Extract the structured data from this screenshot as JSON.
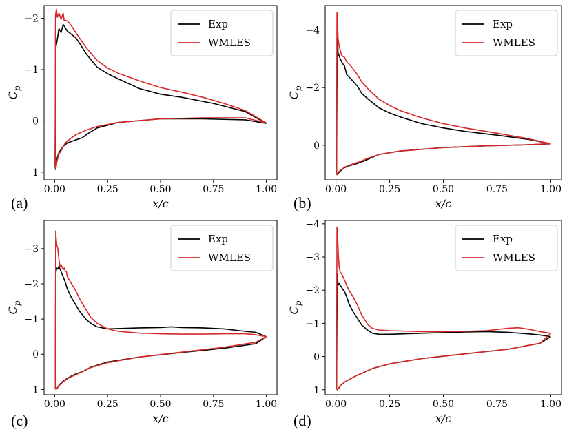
{
  "figure": {
    "background": "#ffffff"
  },
  "legend": {
    "entries": [
      {
        "label": "Exp",
        "color": "#000000"
      },
      {
        "label": "WMLES",
        "color": "#d62728"
      }
    ]
  },
  "chart_data": [
    {
      "type": "line",
      "panel_label": "(a)",
      "xlabel": "x/c",
      "ylabel": "C_p",
      "xlim": [
        -0.05,
        1.05
      ],
      "ylim": [
        1.15,
        -2.25
      ],
      "xticks": [
        "0.00",
        "0.25",
        "0.50",
        "0.75",
        "1.00"
      ],
      "yticks": [
        {
          "v": -2,
          "label": "−2"
        },
        {
          "v": -1,
          "label": "−1"
        },
        {
          "v": 0,
          "label": "0"
        },
        {
          "v": 1,
          "label": "1"
        }
      ],
      "legend_position": "top-right",
      "series": [
        {
          "name": "Exp",
          "color": "#000000",
          "x": [
            1.0,
            0.9,
            0.75,
            0.6,
            0.5,
            0.4,
            0.3,
            0.25,
            0.2,
            0.15,
            0.12,
            0.1,
            0.06,
            0.04,
            0.03,
            0.02,
            0.012,
            0.005,
            0.002,
            0.005,
            0.012,
            0.02,
            0.04,
            0.06,
            0.08,
            0.1,
            0.13,
            0.16,
            0.2,
            0.3,
            0.5,
            0.7,
            0.9,
            1.0
          ],
          "y": [
            0.05,
            -0.18,
            -0.34,
            -0.46,
            -0.52,
            -0.63,
            -0.82,
            -0.92,
            -1.05,
            -1.3,
            -1.5,
            -1.62,
            -1.75,
            -1.88,
            -1.72,
            -1.8,
            -1.58,
            -1.42,
            0.9,
            0.95,
            0.72,
            0.62,
            0.5,
            0.43,
            0.4,
            0.37,
            0.33,
            0.24,
            0.14,
            0.03,
            -0.04,
            -0.04,
            -0.02,
            0.05
          ]
        },
        {
          "name": "WMLES",
          "color": "#d62728",
          "x": [
            1.0,
            0.9,
            0.8,
            0.7,
            0.6,
            0.5,
            0.4,
            0.3,
            0.25,
            0.2,
            0.15,
            0.12,
            0.1,
            0.08,
            0.06,
            0.045,
            0.04,
            0.03,
            0.025,
            0.02,
            0.012,
            0.008,
            0.004,
            0.002,
            0.005,
            0.01,
            0.02,
            0.035,
            0.05,
            0.07,
            0.1,
            0.15,
            0.2,
            0.3,
            0.5,
            0.7,
            0.9,
            1.0
          ],
          "y": [
            0.04,
            -0.2,
            -0.34,
            -0.46,
            -0.56,
            -0.65,
            -0.78,
            -0.93,
            -1.03,
            -1.18,
            -1.42,
            -1.6,
            -1.72,
            -1.85,
            -1.95,
            -1.96,
            -2.1,
            -1.98,
            -2.05,
            -2.1,
            -2.02,
            -2.18,
            -2.05,
            0.9,
            0.93,
            0.8,
            0.65,
            0.55,
            0.43,
            0.36,
            0.27,
            0.18,
            0.11,
            0.03,
            -0.04,
            -0.06,
            -0.06,
            0.04
          ]
        }
      ]
    },
    {
      "type": "line",
      "panel_label": "(b)",
      "xlabel": "x/c",
      "ylabel": "C_p",
      "xlim": [
        -0.05,
        1.05
      ],
      "ylim": [
        1.2,
        -4.85
      ],
      "xticks": [
        "0.00",
        "0.25",
        "0.50",
        "0.75",
        "1.00"
      ],
      "yticks": [
        {
          "v": -4,
          "label": "−4"
        },
        {
          "v": -2,
          "label": "−2"
        },
        {
          "v": 0,
          "label": "0"
        }
      ],
      "legend_position": "top-right",
      "series": [
        {
          "name": "Exp",
          "color": "#000000",
          "x": [
            1.0,
            0.9,
            0.75,
            0.6,
            0.5,
            0.4,
            0.3,
            0.25,
            0.2,
            0.15,
            0.12,
            0.1,
            0.07,
            0.05,
            0.04,
            0.03,
            0.02,
            0.015,
            0.01,
            0.006,
            0.003,
            0.006,
            0.01,
            0.02,
            0.04,
            0.06,
            0.1,
            0.13,
            0.16,
            0.2,
            0.3,
            0.5,
            0.7,
            0.9,
            1.0
          ],
          "y": [
            -0.05,
            -0.2,
            -0.35,
            -0.48,
            -0.6,
            -0.75,
            -0.98,
            -1.12,
            -1.3,
            -1.6,
            -1.8,
            -2.05,
            -2.3,
            -2.45,
            -2.75,
            -2.85,
            -3.0,
            -3.1,
            -3.2,
            -4.0,
            1.0,
            1.02,
            0.98,
            0.9,
            0.78,
            0.72,
            0.63,
            0.55,
            0.45,
            0.32,
            0.2,
            0.08,
            0.02,
            -0.02,
            -0.05
          ]
        },
        {
          "name": "WMLES",
          "color": "#d62728",
          "x": [
            1.0,
            0.9,
            0.75,
            0.6,
            0.5,
            0.4,
            0.3,
            0.25,
            0.2,
            0.15,
            0.12,
            0.1,
            0.07,
            0.05,
            0.04,
            0.03,
            0.025,
            0.02,
            0.015,
            0.01,
            0.008,
            0.005,
            0.003,
            0.005,
            0.01,
            0.02,
            0.04,
            0.06,
            0.1,
            0.15,
            0.2,
            0.3,
            0.5,
            0.7,
            0.9,
            1.0
          ],
          "y": [
            -0.05,
            -0.22,
            -0.42,
            -0.6,
            -0.75,
            -0.95,
            -1.2,
            -1.38,
            -1.6,
            -1.95,
            -2.2,
            -2.45,
            -2.75,
            -2.9,
            -3.05,
            -3.1,
            -3.15,
            -3.3,
            -3.45,
            -3.7,
            -4.1,
            -4.6,
            1.0,
            1.02,
            0.95,
            0.88,
            0.76,
            0.7,
            0.6,
            0.45,
            0.32,
            0.2,
            0.08,
            0.02,
            -0.02,
            -0.06
          ]
        }
      ]
    },
    {
      "type": "line",
      "panel_label": "(c)",
      "xlabel": "x/c",
      "ylabel": "C_p",
      "xlim": [
        -0.05,
        1.05
      ],
      "ylim": [
        1.15,
        -3.8
      ],
      "xticks": [
        "0.00",
        "0.25",
        "0.50",
        "0.75",
        "1.00"
      ],
      "yticks": [
        {
          "v": -3,
          "label": "−3"
        },
        {
          "v": -2,
          "label": "−2"
        },
        {
          "v": -1,
          "label": "−1"
        },
        {
          "v": 0,
          "label": "0"
        },
        {
          "v": 1,
          "label": "1"
        }
      ],
      "legend_position": "top-right",
      "series": [
        {
          "name": "Exp",
          "color": "#000000",
          "x": [
            1.0,
            0.95,
            0.9,
            0.8,
            0.7,
            0.6,
            0.55,
            0.5,
            0.4,
            0.3,
            0.25,
            0.2,
            0.17,
            0.15,
            0.12,
            0.1,
            0.08,
            0.06,
            0.05,
            0.04,
            0.03,
            0.02,
            0.015,
            0.01,
            0.005,
            0.003,
            0.006,
            0.012,
            0.02,
            0.04,
            0.07,
            0.1,
            0.13,
            0.17,
            0.25,
            0.4,
            0.6,
            0.8,
            0.95,
            1.0
          ],
          "y": [
            -0.5,
            -0.62,
            -0.65,
            -0.72,
            -0.75,
            -0.76,
            -0.78,
            -0.76,
            -0.75,
            -0.73,
            -0.72,
            -0.78,
            -0.88,
            -0.98,
            -1.2,
            -1.4,
            -1.6,
            -1.85,
            -2.05,
            -2.2,
            -2.35,
            -2.5,
            -2.42,
            -2.45,
            -2.3,
            0.95,
            1.0,
            0.97,
            0.88,
            0.76,
            0.65,
            0.56,
            0.5,
            0.37,
            0.22,
            0.08,
            -0.05,
            -0.17,
            -0.3,
            -0.5
          ]
        },
        {
          "name": "WMLES",
          "color": "#d62728",
          "x": [
            1.0,
            0.95,
            0.9,
            0.8,
            0.7,
            0.6,
            0.5,
            0.4,
            0.3,
            0.25,
            0.2,
            0.17,
            0.15,
            0.12,
            0.1,
            0.08,
            0.06,
            0.055,
            0.05,
            0.045,
            0.04,
            0.03,
            0.025,
            0.02,
            0.015,
            0.01,
            0.007,
            0.005,
            0.003,
            0.006,
            0.012,
            0.02,
            0.04,
            0.07,
            0.1,
            0.13,
            0.17,
            0.25,
            0.4,
            0.6,
            0.8,
            0.95,
            1.0
          ],
          "y": [
            -0.5,
            -0.55,
            -0.58,
            -0.58,
            -0.57,
            -0.57,
            -0.58,
            -0.6,
            -0.65,
            -0.72,
            -0.88,
            -1.05,
            -1.25,
            -1.55,
            -1.8,
            -2.0,
            -2.2,
            -2.35,
            -2.35,
            -2.45,
            -2.4,
            -2.55,
            -2.5,
            -2.7,
            -3.0,
            -3.1,
            -3.3,
            -3.5,
            0.95,
            1.0,
            0.95,
            0.9,
            0.78,
            0.66,
            0.58,
            0.5,
            0.38,
            0.24,
            0.08,
            -0.06,
            -0.2,
            -0.34,
            -0.5
          ]
        }
      ]
    },
    {
      "type": "line",
      "panel_label": "(d)",
      "xlabel": "x/c",
      "ylabel": "C_p",
      "xlim": [
        -0.05,
        1.05
      ],
      "ylim": [
        1.15,
        -4.1
      ],
      "xticks": [
        "0.00",
        "0.25",
        "0.50",
        "0.75",
        "1.00"
      ],
      "yticks": [
        {
          "v": -4,
          "label": "−4"
        },
        {
          "v": -3,
          "label": "−3"
        },
        {
          "v": -2,
          "label": "−2"
        },
        {
          "v": -1,
          "label": "−1"
        },
        {
          "v": 0,
          "label": "0"
        },
        {
          "v": 1,
          "label": "1"
        }
      ],
      "legend_position": "top-right",
      "series": [
        {
          "name": "Exp",
          "color": "#000000",
          "x": [
            1.0,
            0.95,
            0.9,
            0.8,
            0.7,
            0.6,
            0.5,
            0.4,
            0.3,
            0.25,
            0.2,
            0.17,
            0.15,
            0.12,
            0.1,
            0.08,
            0.06,
            0.05,
            0.04,
            0.03,
            0.02,
            0.015,
            0.01,
            0.006,
            0.003,
            0.006,
            0.012,
            0.02,
            0.04,
            0.07,
            0.1,
            0.13,
            0.17,
            0.25,
            0.4,
            0.6,
            0.8,
            0.95,
            1.0
          ],
          "y": [
            -0.6,
            -0.65,
            -0.68,
            -0.73,
            -0.75,
            -0.74,
            -0.72,
            -0.7,
            -0.68,
            -0.67,
            -0.67,
            -0.7,
            -0.78,
            -0.95,
            -1.15,
            -1.35,
            -1.6,
            -1.8,
            -1.95,
            -2.05,
            -2.15,
            -2.2,
            -2.15,
            -2.5,
            0.95,
            1.0,
            0.97,
            0.88,
            0.77,
            0.66,
            0.56,
            0.48,
            0.36,
            0.22,
            0.06,
            -0.08,
            -0.22,
            -0.4,
            -0.6
          ]
        },
        {
          "name": "WMLES",
          "color": "#d62728",
          "x": [
            1.0,
            0.95,
            0.9,
            0.85,
            0.8,
            0.7,
            0.6,
            0.5,
            0.4,
            0.3,
            0.25,
            0.2,
            0.17,
            0.15,
            0.12,
            0.1,
            0.08,
            0.06,
            0.05,
            0.04,
            0.03,
            0.02,
            0.015,
            0.012,
            0.01,
            0.007,
            0.005,
            0.003,
            0.006,
            0.012,
            0.02,
            0.04,
            0.07,
            0.1,
            0.13,
            0.17,
            0.25,
            0.4,
            0.6,
            0.8,
            0.95,
            1.0
          ],
          "y": [
            -0.7,
            -0.75,
            -0.82,
            -0.87,
            -0.85,
            -0.78,
            -0.76,
            -0.75,
            -0.75,
            -0.77,
            -0.78,
            -0.8,
            -0.85,
            -0.95,
            -1.25,
            -1.55,
            -1.8,
            -2.0,
            -2.15,
            -2.3,
            -2.45,
            -2.55,
            -2.7,
            -3.0,
            -3.3,
            -3.7,
            -3.9,
            0.95,
            1.0,
            0.96,
            0.88,
            0.77,
            0.66,
            0.56,
            0.48,
            0.36,
            0.22,
            0.06,
            -0.08,
            -0.22,
            -0.4,
            -0.7
          ]
        }
      ]
    }
  ]
}
